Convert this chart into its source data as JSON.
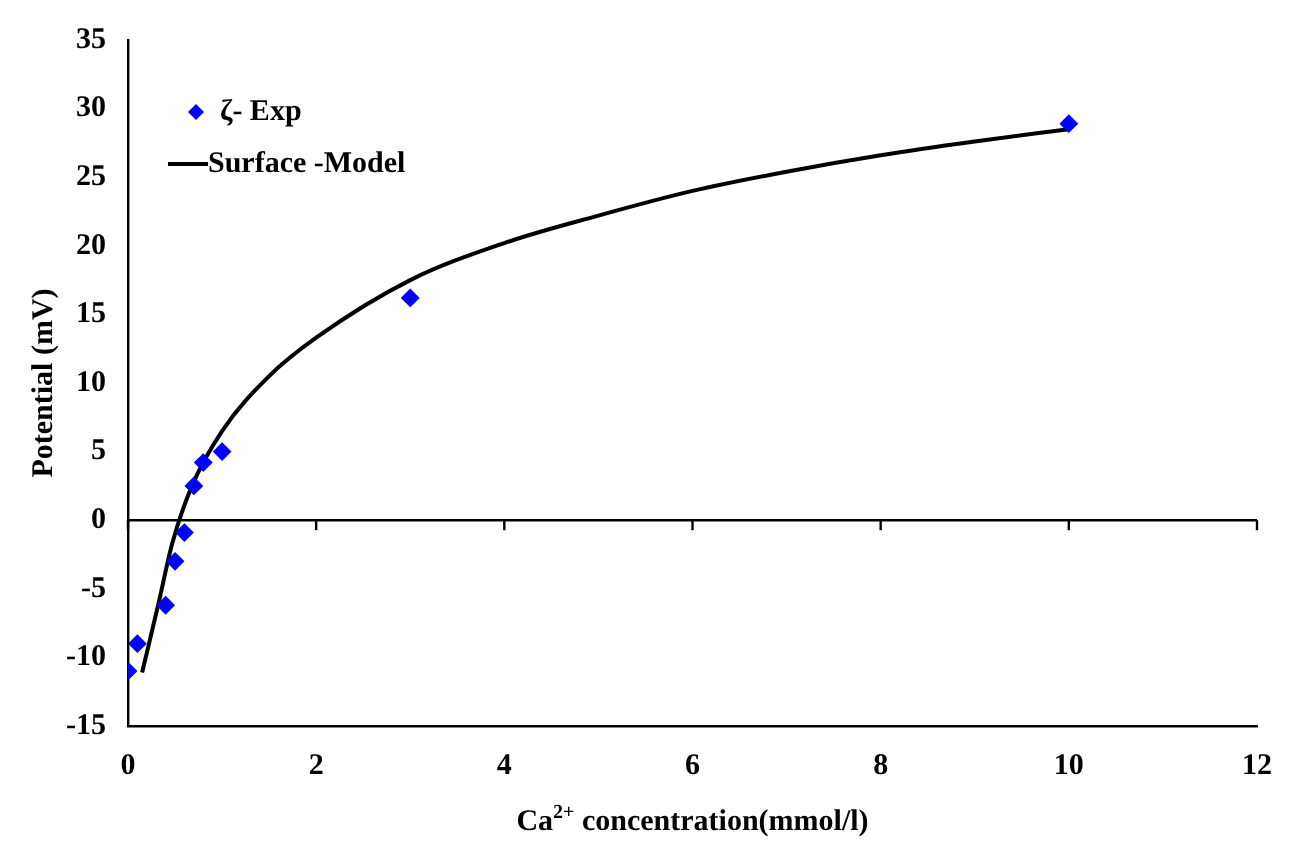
{
  "chart_data": {
    "type": "scatter",
    "xlabel": "Ca$^{2+}$ concentration(mmol/l)",
    "ylabel": "Potential (mV)",
    "xlim": [
      0,
      12
    ],
    "xticks": [
      0,
      2,
      4,
      6,
      8,
      10,
      12
    ],
    "ylim": [
      -15,
      35
    ],
    "yticks": [
      -15,
      -10,
      -5,
      0,
      5,
      10,
      15,
      20,
      25,
      30,
      35
    ],
    "legend": "top left",
    "grid": false,
    "ref_lines": [
      {
        "axis": "y",
        "value": 0,
        "color": "#000000"
      }
    ],
    "series": [
      {
        "name": "ζ- Exp",
        "marker": "diamond",
        "color": "#0000ff",
        "x": [
          0,
          0.1,
          0.4,
          0.5,
          0.6,
          0.7,
          0.8,
          1,
          3,
          10
        ],
        "values": [
          -11,
          -9,
          -6.2,
          -3,
          -0.9,
          2.5,
          4.2,
          5,
          16.2,
          28.9
        ]
      },
      {
        "name": "Surface -Model",
        "type": "line",
        "marker": "none",
        "line_style": "solid",
        "color": "#000000",
        "x": [
          0.15,
          0.32,
          0.47,
          0.68,
          1,
          1.5,
          2,
          3,
          4,
          5,
          6,
          7,
          8,
          9,
          10
        ],
        "values": [
          -11.1,
          -6.2,
          -1.7,
          2.5,
          6.5,
          10.5,
          13.3,
          17.5,
          20.2,
          22.2,
          24,
          25.4,
          26.6,
          27.6,
          28.5
        ]
      }
    ]
  }
}
